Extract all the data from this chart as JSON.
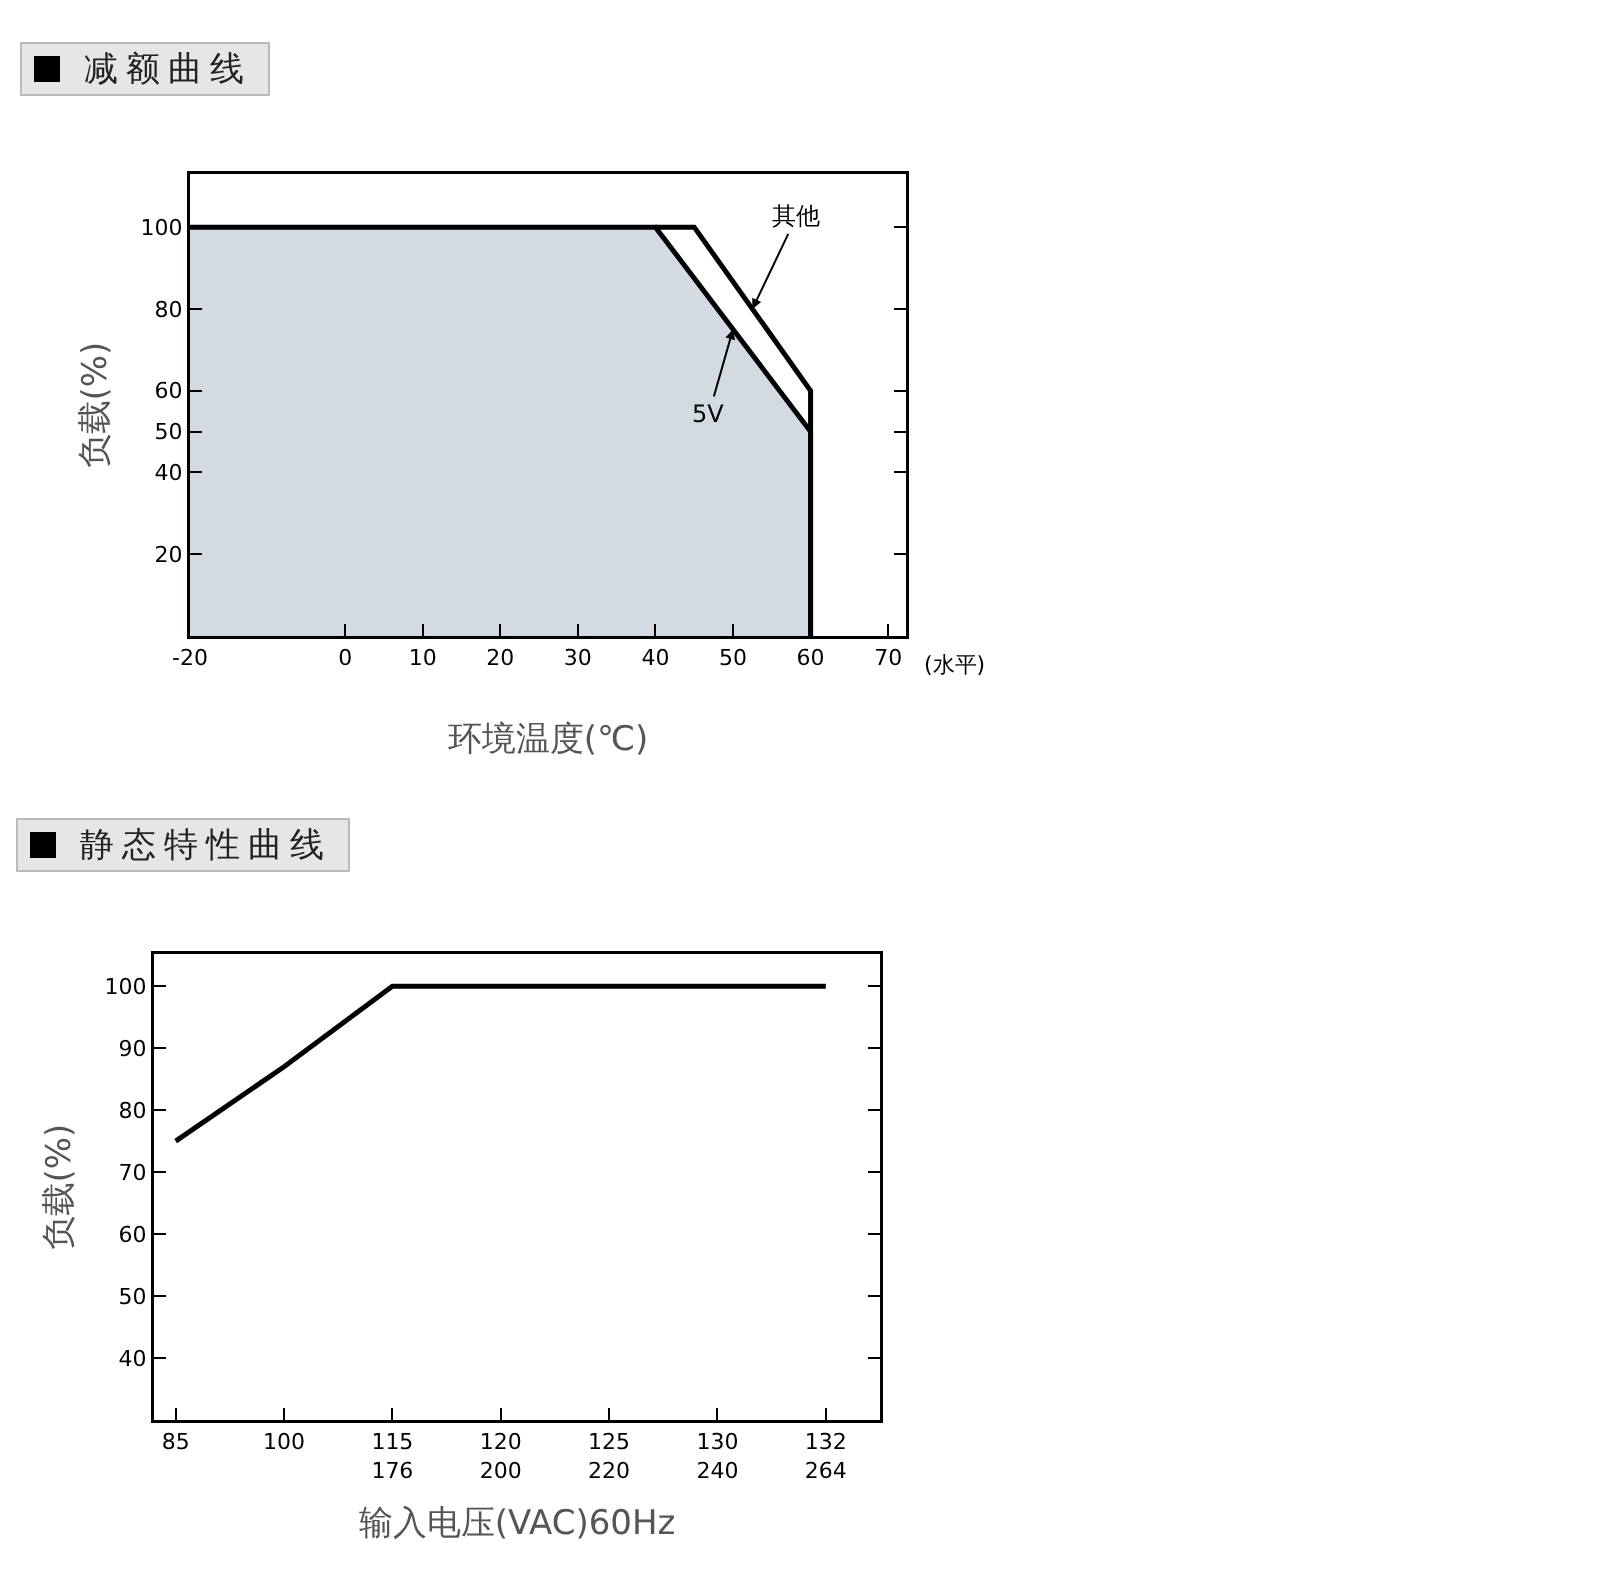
{
  "chart_data": [
    {
      "type": "line",
      "title": "减额曲线",
      "xlabel": "环境温度(℃)",
      "ylabel": "负载(%)",
      "annotations": [
        "(水平)"
      ],
      "series": [
        {
          "name": "5V",
          "type": "area",
          "color": "#000000",
          "x": [
            -20,
            40,
            60,
            60
          ],
          "values": [
            100,
            100,
            50,
            0
          ]
        },
        {
          "name": "其他",
          "color": "#000000",
          "x": [
            40,
            45,
            60,
            60
          ],
          "values": [
            100,
            100,
            60,
            0
          ]
        }
      ],
      "xlim": [
        -20,
        72.3
      ],
      "xticks": [
        -20,
        0,
        10,
        20,
        30,
        40,
        50,
        60,
        70
      ],
      "ylim": [
        0,
        113
      ],
      "yticks": [
        20,
        40,
        50,
        60,
        80,
        100
      ],
      "grid": false,
      "legend": false
    },
    {
      "type": "line",
      "title": "静态特性曲线",
      "xlabel": "输入电压(VAC)60Hz",
      "ylabel": "负载(%)",
      "categories": [
        "85",
        "100",
        "115\n176",
        "120\n200",
        "125\n220",
        "130\n240",
        "132\n264"
      ],
      "series": [
        {
          "color": "#000000",
          "values": [
            75,
            87,
            100,
            100,
            100,
            100,
            100
          ]
        }
      ],
      "ylim": [
        30,
        105.2
      ],
      "yticks": [
        40,
        50,
        60,
        70,
        80,
        90,
        100
      ],
      "grid": false,
      "legend": false
    }
  ]
}
